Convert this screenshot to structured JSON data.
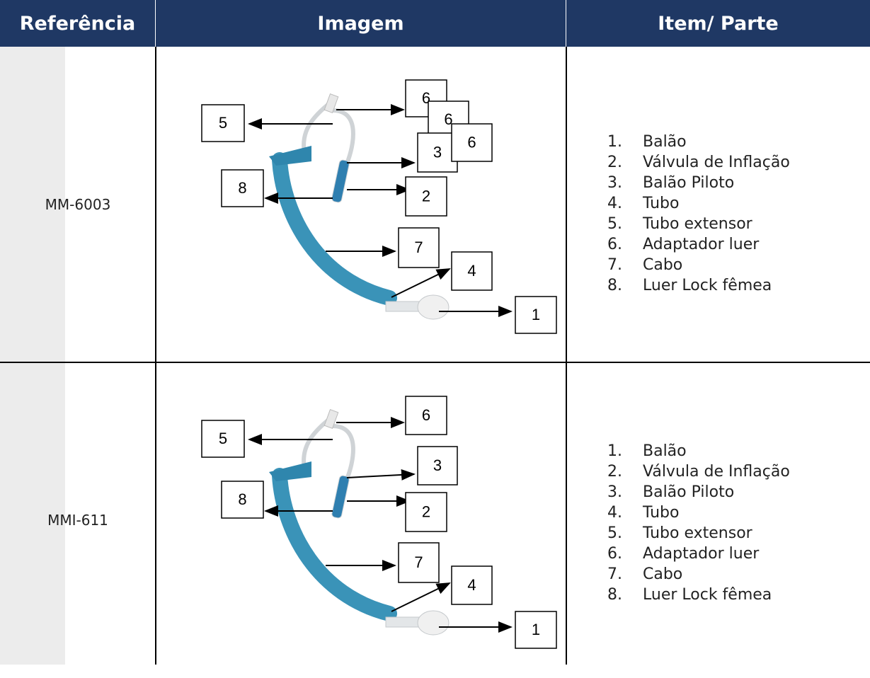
{
  "header": {
    "columns": [
      "Referência",
      "Imagem",
      "Item/ Parte"
    ]
  },
  "rows": [
    {
      "reference": "MM-6003",
      "callouts": [
        "5",
        "6",
        "6",
        "3",
        "6",
        "8",
        "2",
        "7",
        "4",
        "1"
      ],
      "items": [
        {
          "number": "1.",
          "text": "Balão"
        },
        {
          "number": "2.",
          "text": "Válvula de Inflação"
        },
        {
          "number": "3.",
          "text": "Balão Piloto"
        },
        {
          "number": "4.",
          "text": "Tubo"
        },
        {
          "number": "5.",
          "text": "Tubo extensor"
        },
        {
          "number": "6.",
          "text": "Adaptador luer"
        },
        {
          "number": "7.",
          "text": "Cabo"
        },
        {
          "number": "8.",
          "text": "Luer Lock fêmea"
        }
      ]
    },
    {
      "reference": "MMI-611",
      "callouts": [
        "5",
        "6",
        "3",
        "8",
        "2",
        "7",
        "4",
        "1"
      ],
      "items": [
        {
          "number": "1.",
          "text": "Balão"
        },
        {
          "number": "2.",
          "text": "Válvula de Inflação"
        },
        {
          "number": "3.",
          "text": "Balão Piloto"
        },
        {
          "number": "4.",
          "text": "Tubo"
        },
        {
          "number": "5.",
          "text": "Tubo extensor"
        },
        {
          "number": "6.",
          "text": "Adaptador luer"
        },
        {
          "number": "7.",
          "text": "Cabo"
        },
        {
          "number": "8.",
          "text": "Luer Lock fêmea"
        }
      ]
    }
  ]
}
